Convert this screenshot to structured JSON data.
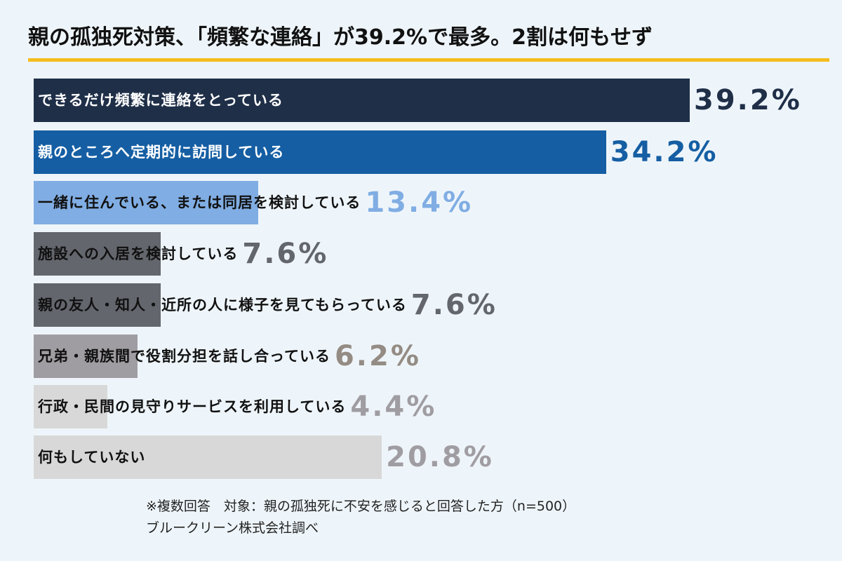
{
  "header": {
    "title": "親の孤独死対策、「頻繁な連絡」が39.2%で最多。2割は何もせず",
    "rule_color": "#f5bd1f"
  },
  "chart_data": {
    "type": "bar",
    "orientation": "horizontal",
    "title": "親の孤独死対策、「頻繁な連絡」が39.2%で最多。2割は何もせず",
    "xlabel": "",
    "ylabel": "",
    "unit": "%",
    "grid": false,
    "legend": "none",
    "categories": [
      "できるだけ頻繁に連絡をとっている",
      "親のところへ定期的に訪問している",
      "一緒に住んでいる、または同居を検討している",
      "施設への入居を検討している",
      "親の友人・知人・近所の人に様子を見てもらっている",
      "兄弟・親族間で役割分担を話し合っている",
      "行政・民間の見守りサービスを利用している",
      "何もしていない"
    ],
    "values": [
      39.2,
      34.2,
      13.4,
      7.6,
      7.6,
      6.2,
      4.4,
      20.8
    ],
    "value_labels": [
      "39.2%",
      "34.2%",
      "13.4%",
      "7.6%",
      "7.6%",
      "6.2%",
      "4.4%",
      "20.8%"
    ],
    "bar_colors": [
      "#1f2f48",
      "#155ea3",
      "#80ade3",
      "#63666d",
      "#63666d",
      "#a09da2",
      "#d8d8d8",
      "#d8d8d8"
    ],
    "label_colors": [
      "#ffffff",
      "#ffffff",
      "#111111",
      "#111111",
      "#111111",
      "#111111",
      "#111111",
      "#111111"
    ],
    "value_colors": [
      "#1f2f48",
      "#155ea3",
      "#80ade3",
      "#63666d",
      "#63666d",
      "#948c84",
      "#a09da2",
      "#a09da2"
    ]
  },
  "footer": {
    "note1": "※複数回答　対象：親の孤独死に不安を感じると回答した方（n=500）",
    "note2": "ブルークリーン株式会社調べ"
  }
}
